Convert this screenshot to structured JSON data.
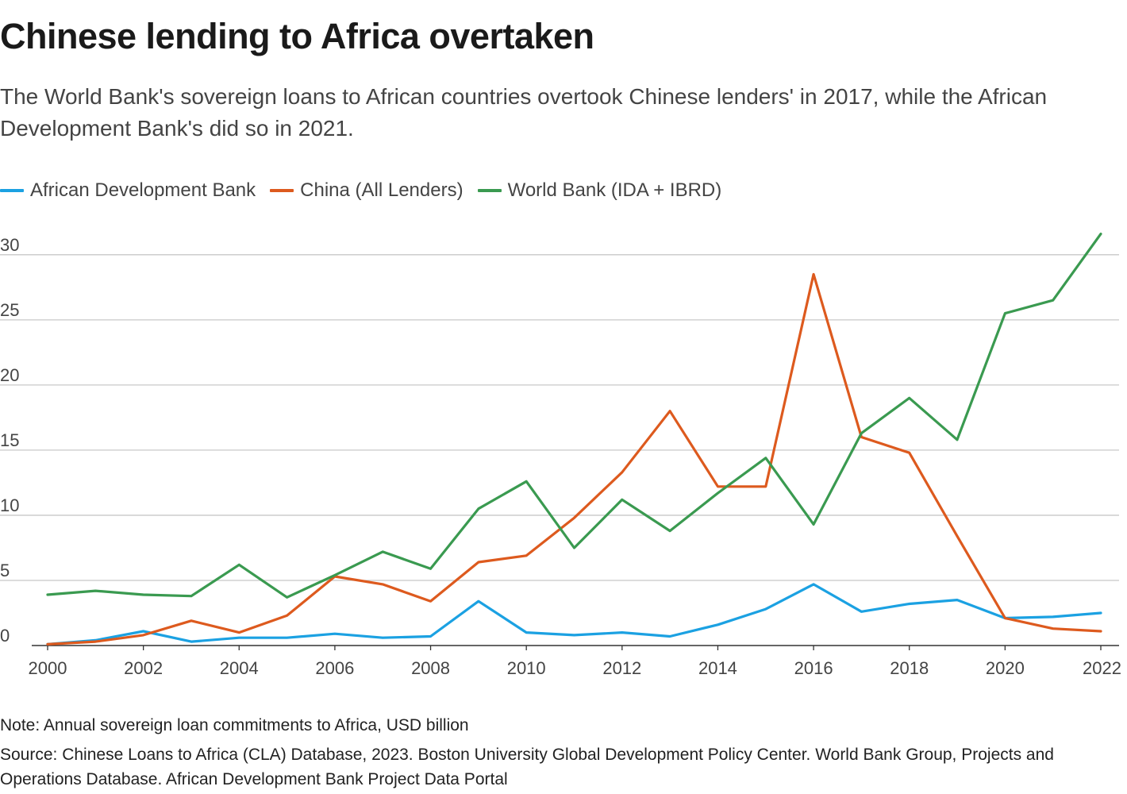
{
  "title": "Chinese lending to Africa overtaken",
  "subtitle": "The World Bank's sovereign loans to African countries overtook Chinese lenders' in 2017, while the African Development Bank's did so in 2021.",
  "note": "Note: Annual sovereign loan commitments to Africa, USD billion",
  "source": "Source: Chinese Loans to Africa (CLA) Database, 2023. Boston University Global Development Policy Center. World Bank Group, Projects and Operations Database. African Development Bank Project Data Portal",
  "chart_data": {
    "type": "line",
    "x": [
      2000,
      2001,
      2002,
      2003,
      2004,
      2005,
      2006,
      2007,
      2008,
      2009,
      2010,
      2011,
      2012,
      2013,
      2014,
      2015,
      2016,
      2017,
      2018,
      2019,
      2020,
      2021,
      2022
    ],
    "x_ticks": [
      "2000",
      "2002",
      "2004",
      "2006",
      "2008",
      "2010",
      "2012",
      "2014",
      "2016",
      "2018",
      "2020",
      "2022"
    ],
    "y_ticks": [
      "0",
      "5",
      "10",
      "15",
      "20",
      "25",
      "30"
    ],
    "ylim": [
      0,
      32
    ],
    "xlim": [
      2000,
      2022
    ],
    "grid": true,
    "legend_position": "top-left",
    "series": [
      {
        "name": "African Development Bank",
        "color": "#1ba1e2",
        "values": [
          0.1,
          0.4,
          1.1,
          0.3,
          0.6,
          0.6,
          0.9,
          0.6,
          0.7,
          3.4,
          1.0,
          0.8,
          1.0,
          0.7,
          1.6,
          2.8,
          4.7,
          2.6,
          3.2,
          3.5,
          2.1,
          2.2,
          2.5
        ]
      },
      {
        "name": "China (All Lenders)",
        "color": "#dd5a1e",
        "values": [
          0.1,
          0.3,
          0.8,
          1.9,
          1.0,
          2.3,
          5.3,
          4.7,
          3.4,
          6.4,
          6.9,
          9.8,
          13.3,
          18.0,
          12.2,
          12.2,
          28.5,
          16.0,
          14.8,
          8.4,
          2.1,
          1.3,
          1.1
        ]
      },
      {
        "name": "World Bank (IDA + IBRD)",
        "color": "#3a9a50",
        "values": [
          3.9,
          4.2,
          3.9,
          3.8,
          6.2,
          3.7,
          5.4,
          7.2,
          5.9,
          10.5,
          12.6,
          7.5,
          11.2,
          8.8,
          11.7,
          14.4,
          9.3,
          16.3,
          19.0,
          15.8,
          25.5,
          26.5,
          31.6
        ]
      }
    ]
  }
}
